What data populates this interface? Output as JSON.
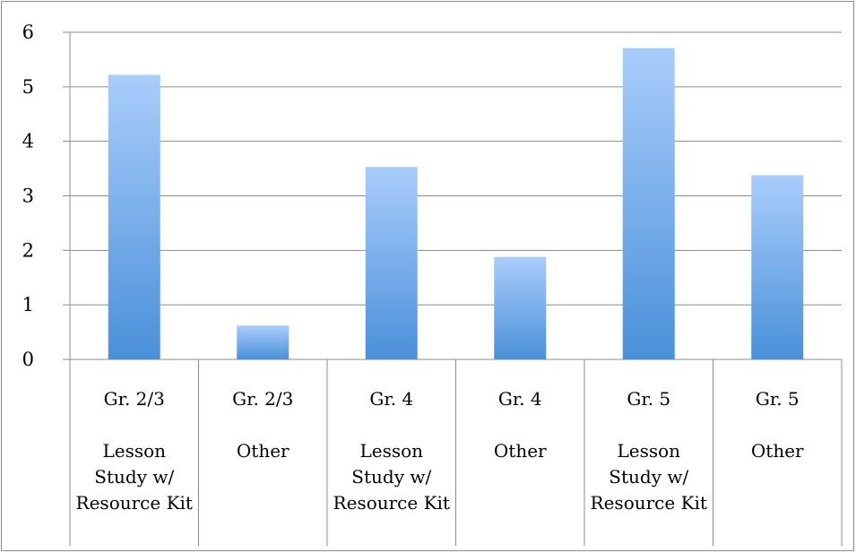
{
  "chart_data": {
    "type": "bar",
    "categories": [
      [
        "Gr. 2/3",
        "",
        "Lesson",
        "Study w/",
        "Resource Kit"
      ],
      [
        "Gr. 2/3",
        "",
        "Other"
      ],
      [
        "Gr. 4",
        "",
        "Lesson",
        "Study w/",
        "Resource Kit"
      ],
      [
        "Gr. 4",
        "",
        "Other"
      ],
      [
        "Gr. 5",
        "",
        "Lesson",
        "Study w/",
        "Resource Kit"
      ],
      [
        "Gr. 5",
        "",
        "Other"
      ]
    ],
    "values": [
      5.22,
      0.62,
      3.53,
      1.88,
      5.71,
      3.38
    ],
    "title": "",
    "xlabel": "",
    "ylabel": "",
    "ylim": [
      0,
      6
    ],
    "yticks": [
      0,
      1,
      2,
      3,
      4,
      5,
      6
    ],
    "grid": true,
    "legend": "none",
    "colors": {
      "bar_top": "#a9cdfb",
      "bar_bottom": "#4a90d9",
      "grid": "#8c8c8c",
      "axis": "#8c8c8c"
    }
  }
}
